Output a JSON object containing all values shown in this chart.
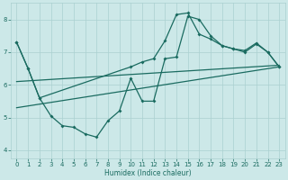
{
  "xlabel": "Humidex (Indice chaleur)",
  "background_color": "#cce8e8",
  "grid_color": "#aad0d0",
  "line_color": "#1a6b60",
  "xlim": [
    -0.5,
    23.5
  ],
  "ylim": [
    3.75,
    8.5
  ],
  "yticks": [
    4,
    5,
    6,
    7,
    8
  ],
  "xticks": [
    0,
    1,
    2,
    3,
    4,
    5,
    6,
    7,
    8,
    9,
    10,
    11,
    12,
    13,
    14,
    15,
    16,
    17,
    18,
    19,
    20,
    21,
    22,
    23
  ],
  "series1": {
    "x": [
      0,
      1,
      2,
      3,
      4,
      5,
      6,
      7,
      8,
      9,
      10,
      11,
      12,
      13,
      14,
      15,
      16,
      17,
      18,
      19,
      20,
      21,
      22,
      23
    ],
    "y": [
      7.3,
      6.5,
      5.6,
      5.05,
      4.75,
      4.7,
      4.5,
      4.4,
      4.9,
      5.2,
      6.2,
      5.5,
      5.5,
      6.8,
      6.85,
      8.1,
      8.0,
      7.5,
      7.2,
      7.1,
      7.0,
      7.25,
      7.0,
      6.55
    ]
  },
  "series2": {
    "x": [
      0,
      1,
      2,
      10,
      11,
      12,
      13,
      14,
      15,
      16,
      17,
      18,
      19,
      20,
      21,
      22,
      23
    ],
    "y": [
      7.3,
      6.5,
      5.6,
      6.55,
      6.7,
      6.8,
      7.35,
      8.15,
      8.2,
      7.55,
      7.4,
      7.2,
      7.1,
      7.05,
      7.28,
      7.0,
      6.55
    ]
  },
  "trend1": {
    "x": [
      0,
      23
    ],
    "y": [
      6.1,
      6.6
    ]
  },
  "trend2": {
    "x": [
      0,
      23
    ],
    "y": [
      5.3,
      6.55
    ]
  }
}
